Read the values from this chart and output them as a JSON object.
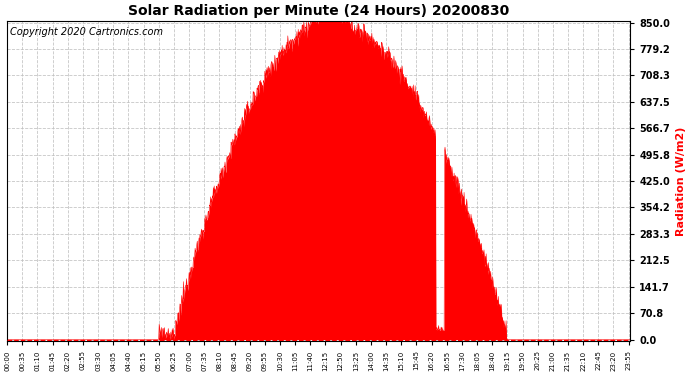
{
  "title": "Solar Radiation per Minute (24 Hours) 20200830",
  "copyright_text": "Copyright 2020 Cartronics.com",
  "ylabel": "Radiation (W/m2)",
  "ylabel_color": "#ff0000",
  "background_color": "#ffffff",
  "fill_color": "#ff0000",
  "line_color": "#ff0000",
  "grid_color": "#c0c0c0",
  "yticks": [
    0.0,
    70.8,
    141.7,
    212.5,
    283.3,
    354.2,
    425.0,
    495.8,
    566.7,
    637.5,
    708.3,
    779.2,
    850.0
  ],
  "ymax": 850.0,
  "ymin": 0.0,
  "total_minutes": 1440,
  "peak_minute": 745,
  "peak_value": 855,
  "sunrise_minute": 385,
  "sunset_minute": 1155,
  "xtick_step": 35,
  "title_fontsize": 10,
  "copyright_fontsize": 7,
  "ylabel_fontsize": 8,
  "ytick_fontsize": 7,
  "xtick_fontsize": 5
}
